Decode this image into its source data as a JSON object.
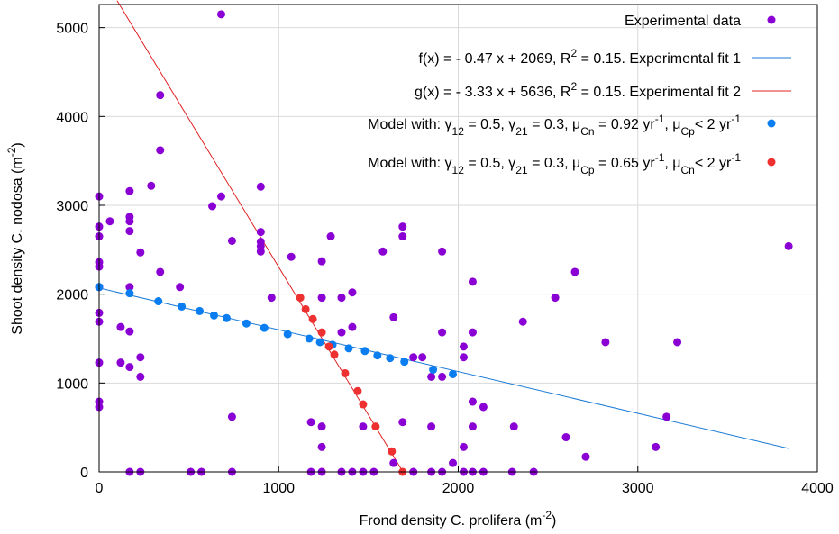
{
  "chart_data": {
    "type": "scatter",
    "xlabel": "Frond density C. prolifera (m",
    "xlabel_sup": "-2",
    "xlabel_tail": ")",
    "ylabel": "Shoot density C. nodosa (m",
    "ylabel_sup": "-2",
    "ylabel_tail": ")",
    "xlim": [
      0,
      4000
    ],
    "ylim": [
      0,
      5000
    ],
    "xticks": [
      0,
      1000,
      2000,
      3000,
      4000
    ],
    "yticks": [
      0,
      1000,
      2000,
      3000,
      4000,
      5000
    ],
    "grid": true,
    "legend_position": "top-right",
    "series": [
      {
        "name": "Experimental data",
        "kind": "points",
        "color": "#8a00d4",
        "points": [
          [
            0,
            3100
          ],
          [
            0,
            2760
          ],
          [
            0,
            2650
          ],
          [
            0,
            2360
          ],
          [
            0,
            2310
          ],
          [
            0,
            2080
          ],
          [
            0,
            1790
          ],
          [
            0,
            1690
          ],
          [
            0,
            1230
          ],
          [
            0,
            790
          ],
          [
            0,
            730
          ],
          [
            60,
            2820
          ],
          [
            120,
            1630
          ],
          [
            120,
            1230
          ],
          [
            170,
            3160
          ],
          [
            170,
            2870
          ],
          [
            170,
            2820
          ],
          [
            170,
            2710
          ],
          [
            170,
            2080
          ],
          [
            170,
            1580
          ],
          [
            170,
            1180
          ],
          [
            170,
            0
          ],
          [
            230,
            2470
          ],
          [
            230,
            1290
          ],
          [
            230,
            1070
          ],
          [
            230,
            0
          ],
          [
            290,
            3220
          ],
          [
            340,
            4240
          ],
          [
            340,
            3620
          ],
          [
            340,
            2250
          ],
          [
            450,
            2080
          ],
          [
            510,
            0
          ],
          [
            570,
            0
          ],
          [
            630,
            2990
          ],
          [
            680,
            5150
          ],
          [
            680,
            3100
          ],
          [
            740,
            2600
          ],
          [
            740,
            620
          ],
          [
            740,
            0
          ],
          [
            900,
            3210
          ],
          [
            900,
            2700
          ],
          [
            900,
            2590
          ],
          [
            900,
            2540
          ],
          [
            900,
            2480
          ],
          [
            960,
            1960
          ],
          [
            1070,
            2420
          ],
          [
            1180,
            560
          ],
          [
            1180,
            0
          ],
          [
            1240,
            2370
          ],
          [
            1240,
            1960
          ],
          [
            1240,
            510
          ],
          [
            1240,
            280
          ],
          [
            1240,
            0
          ],
          [
            1290,
            2650
          ],
          [
            1350,
            1960
          ],
          [
            1350,
            1570
          ],
          [
            1350,
            0
          ],
          [
            1410,
            2020
          ],
          [
            1410,
            1630
          ],
          [
            1410,
            0
          ],
          [
            1470,
            510
          ],
          [
            1470,
            0
          ],
          [
            1530,
            0
          ],
          [
            1580,
            2480
          ],
          [
            1640,
            1740
          ],
          [
            1640,
            100
          ],
          [
            1690,
            2760
          ],
          [
            1690,
            2650
          ],
          [
            1690,
            560
          ],
          [
            1750,
            1290
          ],
          [
            1750,
            0
          ],
          [
            1800,
            1290
          ],
          [
            1850,
            1070
          ],
          [
            1850,
            510
          ],
          [
            1850,
            0
          ],
          [
            1910,
            2480
          ],
          [
            1910,
            1570
          ],
          [
            1910,
            1070
          ],
          [
            1910,
            0
          ],
          [
            1970,
            100
          ],
          [
            2030,
            1410
          ],
          [
            2030,
            1290
          ],
          [
            2030,
            280
          ],
          [
            2030,
            0
          ],
          [
            2080,
            2140
          ],
          [
            2080,
            1570
          ],
          [
            2080,
            790
          ],
          [
            2080,
            510
          ],
          [
            2080,
            0
          ],
          [
            2140,
            730
          ],
          [
            2140,
            0
          ],
          [
            2300,
            0
          ],
          [
            2310,
            510
          ],
          [
            2360,
            1690
          ],
          [
            2420,
            0
          ],
          [
            2540,
            1960
          ],
          [
            2600,
            390
          ],
          [
            2650,
            2250
          ],
          [
            2710,
            170
          ],
          [
            2820,
            1460
          ],
          [
            3100,
            280
          ],
          [
            3160,
            620
          ],
          [
            3220,
            1460
          ],
          [
            3840,
            2540
          ]
        ]
      },
      {
        "name": "Experimental fit 1",
        "legend_label": "f(x) = - 0.47 x + 2069,  R",
        "legend_sup": "2",
        "legend_tail": " = 0.15.  Experimental fit 1",
        "kind": "line",
        "color": "#1a7ad6",
        "x": [
          0,
          3840
        ],
        "y": [
          2069,
          264
        ]
      },
      {
        "name": "Experimental fit 2",
        "legend_label": "g(x) = - 3.33 x + 5636,  R",
        "legend_sup": "2",
        "legend_tail": " = 0.15.  Experimental fit 2",
        "kind": "line",
        "color": "#e02020",
        "x": [
          100,
          1692
        ],
        "y": [
          5303,
          0
        ]
      },
      {
        "name": "Model with: γ12 = 0.5, γ21 = 0.3, μCn = 0.92 yr-1, μCp< 2 yr-1",
        "kind": "points",
        "color": "#0a7ef0",
        "points": [
          [
            0,
            2080
          ],
          [
            170,
            2010
          ],
          [
            330,
            1920
          ],
          [
            460,
            1860
          ],
          [
            560,
            1810
          ],
          [
            640,
            1760
          ],
          [
            710,
            1730
          ],
          [
            820,
            1670
          ],
          [
            920,
            1620
          ],
          [
            1050,
            1550
          ],
          [
            1170,
            1500
          ],
          [
            1230,
            1460
          ],
          [
            1300,
            1430
          ],
          [
            1390,
            1390
          ],
          [
            1480,
            1360
          ],
          [
            1550,
            1310
          ],
          [
            1620,
            1280
          ],
          [
            1700,
            1240
          ],
          [
            1860,
            1150
          ],
          [
            1970,
            1100
          ]
        ]
      },
      {
        "name": "Model with: γ12 = 0.5, γ21 = 0.3, μCp = 0.65 yr-1, μCn< 2 yr-1",
        "kind": "points",
        "color": "#ee3030",
        "points": [
          [
            1120,
            1960
          ],
          [
            1150,
            1830
          ],
          [
            1190,
            1720
          ],
          [
            1240,
            1570
          ],
          [
            1280,
            1410
          ],
          [
            1310,
            1320
          ],
          [
            1370,
            1110
          ],
          [
            1440,
            910
          ],
          [
            1470,
            760
          ],
          [
            1540,
            510
          ],
          [
            1630,
            230
          ],
          [
            1690,
            0
          ]
        ]
      }
    ],
    "legend": [
      {
        "series": 0,
        "text": "Experimental data",
        "sub": []
      },
      {
        "series": 1,
        "parts": [
          [
            "f(x) = - 0.47 x + 2069,  R",
            ""
          ],
          [
            "2",
            "sup"
          ],
          [
            " = 0.15.  Experimental fit 1",
            ""
          ]
        ]
      },
      {
        "series": 2,
        "parts": [
          [
            "g(x) = - 3.33 x + 5636,  R",
            ""
          ],
          [
            "2",
            "sup"
          ],
          [
            " = 0.15.  Experimental fit 2",
            ""
          ]
        ]
      },
      {
        "series": 3,
        "parts": [
          [
            "Model with: γ",
            ""
          ],
          [
            "12",
            "sub"
          ],
          [
            " = 0.5, γ",
            ""
          ],
          [
            "21",
            "sub"
          ],
          [
            " = 0.3, μ",
            ""
          ],
          [
            "Cn",
            "sub"
          ],
          [
            " = 0.92 yr",
            ""
          ],
          [
            "-1",
            "sup"
          ],
          [
            ", μ",
            ""
          ],
          [
            "Cp",
            "sub"
          ],
          [
            "< 2 yr",
            ""
          ],
          [
            "-1",
            "sup"
          ]
        ]
      },
      {
        "series": 4,
        "parts": [
          [
            "Model with: γ",
            ""
          ],
          [
            "12",
            "sub"
          ],
          [
            " = 0.5, γ",
            ""
          ],
          [
            "21",
            "sub"
          ],
          [
            " = 0.3, μ",
            ""
          ],
          [
            "Cp",
            "sub"
          ],
          [
            " = 0.65 yr",
            ""
          ],
          [
            "-1",
            "sup"
          ],
          [
            ", μ",
            ""
          ],
          [
            "Cn",
            "sub"
          ],
          [
            "< 2 yr",
            ""
          ],
          [
            "-1",
            "sup"
          ]
        ]
      }
    ]
  }
}
